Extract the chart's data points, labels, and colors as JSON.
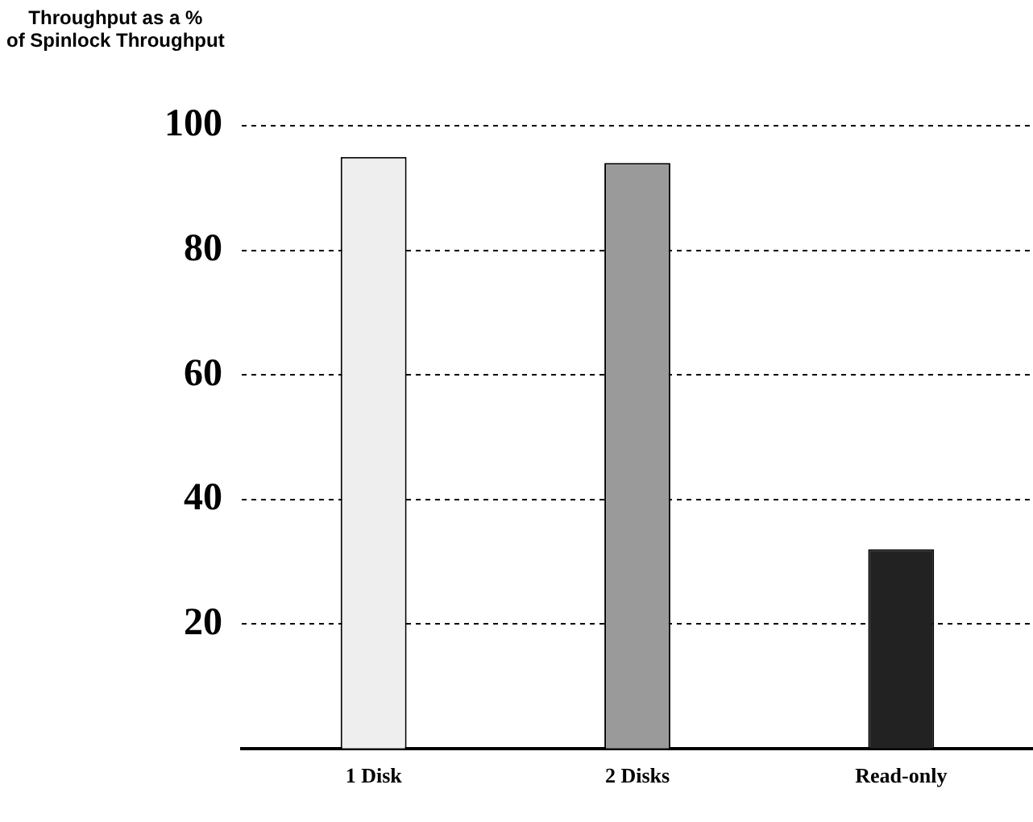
{
  "chart_data": {
    "type": "bar",
    "ylabel": "Throughput as a %\nof Spinlock Throughput",
    "categories": [
      "1 Disk",
      "2 Disks",
      "Read-only"
    ],
    "values": [
      95,
      94,
      32
    ],
    "colors": [
      "#eeeeee",
      "#9a9a9a",
      "#222222"
    ],
    "ylim": [
      0,
      100
    ],
    "yticks": [
      20,
      40,
      60,
      80,
      100
    ],
    "grid": "y",
    "legend": false
  }
}
